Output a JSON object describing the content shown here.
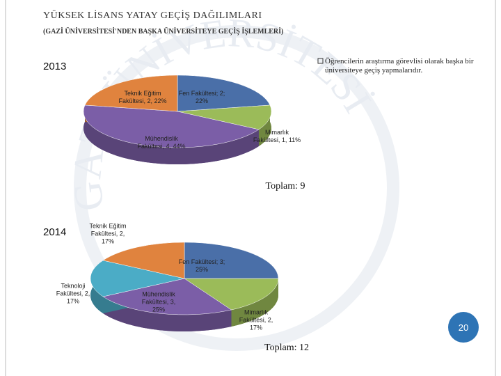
{
  "slide": {
    "title": "YÜKSEK LİSANS YATAY GEÇİŞ DAĞILIMLARI",
    "subtitle": "(GAZİ ÜNİVERSİTESİ'NDEN BAŞKA ÜNİVERSİTEYE GEÇİŞ İŞLEMLERİ)",
    "note": "Öğrencilerin araştırma görevlisi olarak başka bir üniversiteye geçiş yapmalarıdır.",
    "watermark": "GAZİ ÜNİVERSİTESİ",
    "page_number": "20"
  },
  "chart_data": [
    {
      "type": "pie",
      "title": "2013",
      "total_label": "Toplam: 9",
      "values": [
        2,
        1,
        4,
        2
      ],
      "value_labels": [
        "Fen Fakültesi; 2; 22%",
        "Mimarlık Fakültesi, 1, 11%",
        "Mühendislik Fakültesi, 4, 44%",
        "Teknik Eğitim Fakültesi, 2, 22%"
      ],
      "colors": [
        "#4a6fa8",
        "#9bbb59",
        "#7b5ea7",
        "#e0833e"
      ]
    },
    {
      "type": "pie",
      "title": "2014",
      "total_label": "Toplam: 12",
      "values": [
        3,
        2,
        3,
        2,
        2
      ],
      "value_labels": [
        "Fen Fakültesi; 3; 25%",
        "Mimarlık Fakültesi, 2, 17%",
        "Mühendislik Fakültesi, 3, 25%",
        "Teknoloji Fakültesi, 2, 17%",
        "Teknik Eğitim Fakültesi, 2, 17%"
      ],
      "colors": [
        "#4a6fa8",
        "#9bbb59",
        "#7b5ea7",
        "#4bacc6",
        "#e0833e"
      ]
    }
  ]
}
